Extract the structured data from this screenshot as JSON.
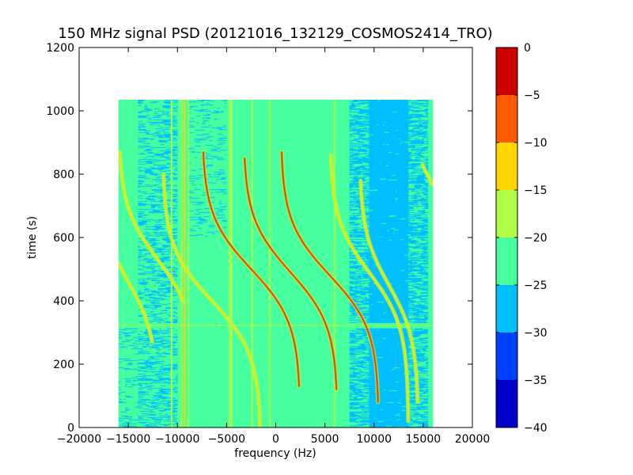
{
  "chart_data": {
    "type": "heatmap",
    "title": "150 MHz signal PSD (20121016_132129_COSMOS2414_TRO)",
    "xlabel": "frequency (Hz)",
    "ylabel": "time (s)",
    "xlim": [
      -20000,
      20000
    ],
    "ylim": [
      0,
      1200
    ],
    "x_ticks": [
      -20000,
      -15000,
      -10000,
      -5000,
      0,
      5000,
      10000,
      15000,
      20000
    ],
    "x_tick_labels": [
      "−20000",
      "−15000",
      "−10000",
      "−5000",
      "0",
      "5000",
      "10000",
      "15000",
      "20000"
    ],
    "y_ticks": [
      0,
      200,
      400,
      600,
      800,
      1000,
      1200
    ],
    "y_tick_labels": [
      "0",
      "200",
      "400",
      "600",
      "800",
      "1000",
      "1200"
    ],
    "data_extent": {
      "x": [
        -16000,
        16000
      ],
      "y": [
        0,
        1035
      ]
    },
    "colorbar": {
      "range": [
        -40,
        0
      ],
      "ticks": [
        0,
        -5,
        -10,
        -15,
        -20,
        -25,
        -30,
        -35,
        -40
      ],
      "tick_labels": [
        "0",
        "−5",
        "−10",
        "−15",
        "−20",
        "−25",
        "−30",
        "−35",
        "−40"
      ],
      "levels": [
        {
          "from": -40,
          "to": -35,
          "color": "#0000cd"
        },
        {
          "from": -35,
          "to": -30,
          "color": "#0040ff"
        },
        {
          "from": -30,
          "to": -25,
          "color": "#00bfff"
        },
        {
          "from": -25,
          "to": -20,
          "color": "#46ff9f"
        },
        {
          "from": -20,
          "to": -15,
          "color": "#b0ff46"
        },
        {
          "from": -15,
          "to": -10,
          "color": "#ffd700"
        },
        {
          "from": -10,
          "to": -5,
          "color": "#ff5a00"
        },
        {
          "from": -5,
          "to": 0,
          "color": "#cd0000"
        }
      ]
    },
    "background_level": -22,
    "background_color": "#46ff9f",
    "trace_colors": {
      "outer": "#b0ff46",
      "core": "#ff5a00",
      "peak": "#cd0000"
    },
    "low_regions": [
      {
        "x": [
          -14000,
          -10000
        ],
        "y": [
          0,
          1035
        ],
        "density": 0.35
      },
      {
        "x": [
          7500,
          15500
        ],
        "y": [
          0,
          1035
        ],
        "density": 0.6
      },
      {
        "x": [
          9500,
          13500
        ],
        "y": [
          0,
          1035
        ],
        "density": 0.95
      },
      {
        "x": [
          -9000,
          -5000
        ],
        "y": [
          600,
          1035
        ],
        "density": 0.15
      },
      {
        "x": [
          -16000,
          -14000
        ],
        "y": [
          0,
          320
        ],
        "density": 0.15
      }
    ],
    "interference_band": {
      "y": [
        313,
        330
      ],
      "x": [
        -16000,
        16000
      ]
    },
    "vertical_lines": [
      {
        "x": -10600,
        "y": [
          0,
          1035
        ],
        "level": -18
      },
      {
        "x": -9600,
        "y": [
          0,
          1035
        ],
        "level": -18
      },
      {
        "x": -9300,
        "y": [
          0,
          1035
        ],
        "level": -15
      },
      {
        "x": -8900,
        "y": [
          0,
          1035
        ],
        "level": -18
      },
      {
        "x": -4700,
        "y": [
          0,
          1035
        ],
        "level": -18
      },
      {
        "x": -4500,
        "y": [
          0,
          1035
        ],
        "level": -18
      },
      {
        "x": -2400,
        "y": [
          0,
          1035
        ],
        "level": -20
      },
      {
        "x": -600,
        "y": [
          0,
          1035
        ],
        "level": -20
      },
      {
        "x": 6000,
        "y": [
          0,
          1035
        ],
        "level": -20
      }
    ],
    "doppler_traces": [
      {
        "center_x": -12000,
        "t0": 530,
        "half_span": 4000,
        "t_top": 870,
        "t_bottom": 400,
        "peak_level": -15
      },
      {
        "center_x": -15000,
        "t0": 460,
        "half_span": 3000,
        "t_top": 590,
        "t_bottom": 270,
        "peak_level": -15
      },
      {
        "center_x": -6500,
        "t0": 400,
        "half_span": 5000,
        "t_top": 800,
        "t_bottom": 0,
        "peak_level": -15
      },
      {
        "center_x": -2500,
        "t0": 500,
        "half_span": 5000,
        "t_top": 870,
        "t_bottom": 130,
        "peak_level": -5
      },
      {
        "center_x": 1500,
        "t0": 490,
        "half_span": 4800,
        "t_top": 850,
        "t_bottom": 120,
        "peak_level": -5
      },
      {
        "center_x": 5500,
        "t0": 480,
        "half_span": 5000,
        "t_top": 870,
        "t_bottom": 80,
        "peak_level": -5
      },
      {
        "center_x": 9500,
        "t0": 490,
        "half_span": 4000,
        "t_top": 860,
        "t_bottom": 20,
        "peak_level": -15
      },
      {
        "center_x": 11500,
        "t0": 450,
        "half_span": 3000,
        "t_top": 780,
        "t_bottom": 80,
        "peak_level": -15
      },
      {
        "center_x": 17500,
        "t0": 700,
        "half_span": 4000,
        "t_top": 830,
        "t_bottom": 580,
        "peak_level": -15
      }
    ]
  }
}
